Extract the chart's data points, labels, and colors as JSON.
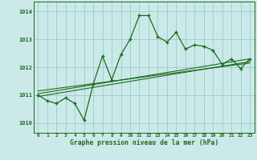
{
  "x": [
    0,
    1,
    2,
    3,
    4,
    5,
    6,
    7,
    8,
    9,
    10,
    11,
    12,
    13,
    14,
    15,
    16,
    17,
    18,
    19,
    20,
    21,
    22,
    23
  ],
  "y": [
    1011.0,
    1010.8,
    1010.7,
    1010.9,
    1010.7,
    1010.1,
    1011.4,
    1012.4,
    1011.55,
    1012.45,
    1013.0,
    1013.85,
    1013.85,
    1013.1,
    1012.9,
    1013.25,
    1012.65,
    1012.8,
    1012.75,
    1012.6,
    1012.1,
    1012.3,
    1011.95,
    1012.3
  ],
  "trend1_x": [
    0,
    23
  ],
  "trend1_y": [
    1010.95,
    1012.2
  ],
  "trend2_x": [
    0,
    23
  ],
  "trend2_y": [
    1011.05,
    1012.3
  ],
  "trend3_x": [
    0,
    23
  ],
  "trend3_y": [
    1011.15,
    1012.15
  ],
  "bg_color": "#cce9e9",
  "grid_color": "#99cccc",
  "line_color": "#1a6b1a",
  "ylabel_ticks": [
    1010,
    1011,
    1012,
    1013,
    1014
  ],
  "xlabel": "Graphe pression niveau de la mer (hPa)",
  "ylim": [
    1009.65,
    1014.35
  ],
  "xlim": [
    -0.5,
    23.5
  ]
}
